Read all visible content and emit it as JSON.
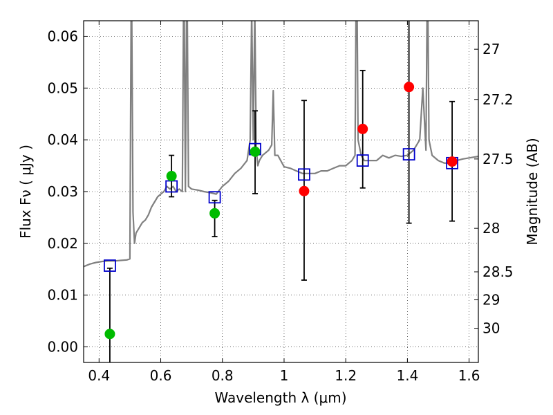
{
  "chart_data": {
    "type": "scatter",
    "xlabel": "Wavelength  λ (μm)",
    "ylabel": "Flux  Fν  ( μJy )",
    "ylabel_right": "Magnitude (AB)",
    "xlim": [
      0.35,
      1.63
    ],
    "ylim": [
      -0.003,
      0.063
    ],
    "grid": true,
    "x_ticks": [
      0.4,
      0.6,
      0.8,
      1.0,
      1.2,
      1.4,
      1.6
    ],
    "x_tick_labels": [
      "0.4",
      "0.6",
      "0.8",
      "1",
      "1.2",
      "1.4",
      "1.6"
    ],
    "y_ticks": [
      0.0,
      0.01,
      0.02,
      0.03,
      0.04,
      0.05,
      0.06
    ],
    "y_tick_labels": [
      "0.00",
      "0.01",
      "0.02",
      "0.03",
      "0.04",
      "0.05",
      "0.06"
    ],
    "right_ticks": [
      {
        "label": "27",
        "flux": 0.0575
      },
      {
        "label": "27.2",
        "flux": 0.0478
      },
      {
        "label": "27.5",
        "flux": 0.0363
      },
      {
        "label": "28",
        "flux": 0.0229
      },
      {
        "label": "28.5",
        "flux": 0.0145
      },
      {
        "label": "29",
        "flux": 0.0091
      },
      {
        "label": "30",
        "flux": 0.0036
      }
    ],
    "model_photometry": {
      "color": "#0000cc",
      "x": [
        0.435,
        0.635,
        0.775,
        0.906,
        1.065,
        1.255,
        1.405,
        1.545
      ],
      "y": [
        0.0157,
        0.031,
        0.0289,
        0.0382,
        0.0333,
        0.036,
        0.0372,
        0.0355
      ]
    },
    "observed": {
      "detected_color": "#00bb00",
      "upper_color": "#ff0000",
      "x": [
        0.435,
        0.635,
        0.775,
        0.906,
        1.065,
        1.255,
        1.405,
        1.545
      ],
      "y": [
        0.0025,
        0.033,
        0.0258,
        0.0377,
        0.0301,
        0.0421,
        0.0502,
        0.0358
      ],
      "err_lo": [
        -0.004,
        0.029,
        0.0213,
        0.0296,
        0.0129,
        0.0307,
        0.0239,
        0.0243
      ],
      "err_hi": [
        0.0152,
        0.037,
        0.0283,
        0.0456,
        0.0476,
        0.0534,
        0.065,
        0.0474
      ],
      "kind": [
        "detected",
        "detected",
        "detected",
        "detected",
        "upper",
        "upper",
        "upper",
        "upper"
      ]
    },
    "spectrum": {
      "color": "#808080",
      "x": [
        0.35,
        0.37,
        0.39,
        0.41,
        0.43,
        0.45,
        0.47,
        0.49,
        0.5,
        0.505,
        0.51,
        0.515,
        0.52,
        0.53,
        0.54,
        0.55,
        0.56,
        0.57,
        0.58,
        0.59,
        0.6,
        0.61,
        0.62,
        0.63,
        0.64,
        0.65,
        0.66,
        0.67,
        0.675,
        0.68,
        0.685,
        0.69,
        0.7,
        0.72,
        0.74,
        0.76,
        0.78,
        0.8,
        0.82,
        0.84,
        0.86,
        0.88,
        0.89,
        0.895,
        0.9,
        0.905,
        0.91,
        0.915,
        0.92,
        0.93,
        0.95,
        0.96,
        0.965,
        0.97,
        0.98,
        1.0,
        1.02,
        1.04,
        1.06,
        1.08,
        1.1,
        1.12,
        1.14,
        1.16,
        1.18,
        1.2,
        1.22,
        1.23,
        1.235,
        1.24,
        1.25,
        1.26,
        1.28,
        1.3,
        1.32,
        1.34,
        1.36,
        1.38,
        1.4,
        1.42,
        1.44,
        1.45,
        1.46,
        1.465,
        1.47,
        1.48,
        1.5,
        1.52,
        1.54,
        1.56,
        1.58,
        1.6,
        1.63
      ],
      "y": [
        0.0155,
        0.016,
        0.0163,
        0.0165,
        0.0166,
        0.0166,
        0.0167,
        0.0168,
        0.017,
        0.075,
        0.026,
        0.02,
        0.022,
        0.023,
        0.024,
        0.0245,
        0.0255,
        0.027,
        0.028,
        0.029,
        0.0295,
        0.03,
        0.031,
        0.0305,
        0.031,
        0.03,
        0.0305,
        0.03,
        0.075,
        0.03,
        0.075,
        0.031,
        0.0305,
        0.0303,
        0.03,
        0.0298,
        0.0295,
        0.031,
        0.032,
        0.0335,
        0.0345,
        0.036,
        0.04,
        0.065,
        0.04,
        0.065,
        0.038,
        0.035,
        0.036,
        0.037,
        0.038,
        0.039,
        0.0495,
        0.037,
        0.037,
        0.0348,
        0.0345,
        0.034,
        0.0335,
        0.0335,
        0.0335,
        0.034,
        0.034,
        0.0345,
        0.035,
        0.035,
        0.036,
        0.037,
        0.08,
        0.04,
        0.037,
        0.036,
        0.036,
        0.036,
        0.037,
        0.0365,
        0.037,
        0.0368,
        0.037,
        0.038,
        0.04,
        0.05,
        0.038,
        0.075,
        0.04,
        0.037,
        0.036,
        0.0355,
        0.0355,
        0.036,
        0.0363,
        0.0365,
        0.0368
      ]
    }
  }
}
